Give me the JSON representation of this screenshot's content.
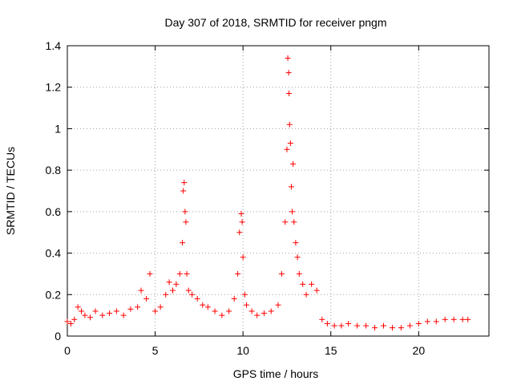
{
  "chart_data": {
    "type": "scatter",
    "title": "Day 307 of 2018, SRMTID for receiver pngm",
    "xlabel": "GPS time / hours",
    "ylabel": "SRMTID / TECUs",
    "xlim": [
      0,
      24
    ],
    "ylim": [
      0,
      1.4
    ],
    "xticks": [
      "0",
      "5",
      "10",
      "15",
      "20"
    ],
    "xtick_values": [
      0,
      5,
      10,
      15,
      20
    ],
    "yticks": [
      "0",
      "0.2",
      "0.4",
      "0.6",
      "0.8",
      "1",
      "1.2",
      "1.4"
    ],
    "ytick_values": [
      0,
      0.2,
      0.4,
      0.6,
      0.8,
      1.0,
      1.2,
      1.4
    ],
    "grid": true,
    "marker": "+",
    "series": [
      {
        "name": "SRMTID",
        "color": "#ff0000",
        "x": [
          0.0,
          0.2,
          0.4,
          0.6,
          0.8,
          1.0,
          1.3,
          1.6,
          2.0,
          2.4,
          2.8,
          3.2,
          3.6,
          4.0,
          4.2,
          4.5,
          4.7,
          5.0,
          5.3,
          5.6,
          5.8,
          6.0,
          6.2,
          6.4,
          6.55,
          6.6,
          6.65,
          6.7,
          6.75,
          6.8,
          6.9,
          7.1,
          7.4,
          7.7,
          8.0,
          8.4,
          8.8,
          9.2,
          9.5,
          9.7,
          9.8,
          9.9,
          9.95,
          10.0,
          10.1,
          10.2,
          10.5,
          10.8,
          11.2,
          11.6,
          12.0,
          12.2,
          12.4,
          12.5,
          12.55,
          12.6,
          12.62,
          12.65,
          12.7,
          12.75,
          12.8,
          12.85,
          12.9,
          13.0,
          13.1,
          13.2,
          13.4,
          13.6,
          13.9,
          14.2,
          14.5,
          14.8,
          15.2,
          15.6,
          16.0,
          16.5,
          17.0,
          17.5,
          18.0,
          18.5,
          19.0,
          19.5,
          20.0,
          20.5,
          21.0,
          21.5,
          22.0,
          22.5,
          22.8
        ],
        "y": [
          0.07,
          0.06,
          0.08,
          0.14,
          0.12,
          0.1,
          0.09,
          0.12,
          0.1,
          0.11,
          0.12,
          0.1,
          0.13,
          0.14,
          0.22,
          0.18,
          0.3,
          0.12,
          0.14,
          0.2,
          0.26,
          0.22,
          0.25,
          0.3,
          0.45,
          0.7,
          0.74,
          0.6,
          0.55,
          0.3,
          0.22,
          0.2,
          0.18,
          0.15,
          0.14,
          0.12,
          0.1,
          0.12,
          0.18,
          0.3,
          0.5,
          0.59,
          0.55,
          0.38,
          0.2,
          0.15,
          0.12,
          0.1,
          0.11,
          0.12,
          0.15,
          0.3,
          0.55,
          0.9,
          1.34,
          1.27,
          1.17,
          1.02,
          0.93,
          0.72,
          0.6,
          0.83,
          0.55,
          0.45,
          0.38,
          0.3,
          0.25,
          0.2,
          0.25,
          0.22,
          0.08,
          0.06,
          0.05,
          0.05,
          0.06,
          0.05,
          0.05,
          0.04,
          0.05,
          0.04,
          0.04,
          0.05,
          0.06,
          0.07,
          0.07,
          0.08,
          0.08,
          0.08,
          0.08
        ]
      }
    ]
  }
}
